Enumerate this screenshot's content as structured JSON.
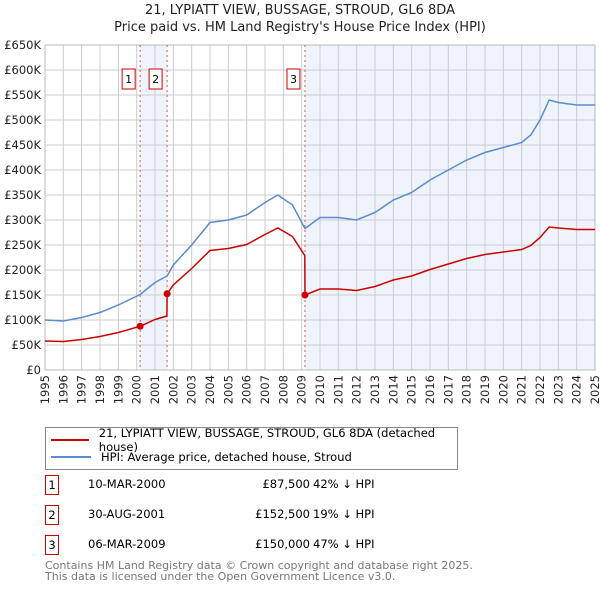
{
  "title_line1": "21, LYPIATT VIEW, BUSSAGE, STROUD, GL6 8DA",
  "title_line2": "Price paid vs. HM Land Registry's House Price Index (HPI)",
  "chart_data": {
    "type": "line",
    "title": "21, LYPIATT VIEW, BUSSAGE, STROUD, GL6 8DA — Price paid vs. HM Land Registry's House Price Index (HPI)",
    "xlim": [
      1995,
      2025
    ],
    "ylim": [
      0,
      650000
    ],
    "x_ticks": [
      "1995",
      "1996",
      "1997",
      "1998",
      "1999",
      "2000",
      "2001",
      "2002",
      "2003",
      "2004",
      "2005",
      "2006",
      "2007",
      "2008",
      "2009",
      "2010",
      "2011",
      "2012",
      "2013",
      "2014",
      "2015",
      "2016",
      "2017",
      "2018",
      "2019",
      "2020",
      "2021",
      "2022",
      "2023",
      "2024",
      "2025"
    ],
    "y_ticks": [
      {
        "v": 0,
        "label": "£0"
      },
      {
        "v": 50000,
        "label": "£50K"
      },
      {
        "v": 100000,
        "label": "£100K"
      },
      {
        "v": 150000,
        "label": "£150K"
      },
      {
        "v": 200000,
        "label": "£200K"
      },
      {
        "v": 250000,
        "label": "£250K"
      },
      {
        "v": 300000,
        "label": "£300K"
      },
      {
        "v": 350000,
        "label": "£350K"
      },
      {
        "v": 400000,
        "label": "£400K"
      },
      {
        "v": 450000,
        "label": "£450K"
      },
      {
        "v": 500000,
        "label": "£500K"
      },
      {
        "v": 550000,
        "label": "£550K"
      },
      {
        "v": 600000,
        "label": "£600K"
      },
      {
        "v": 650000,
        "label": "£650K"
      }
    ],
    "grid": true,
    "series": [
      {
        "name": "21, LYPIATT VIEW, BUSSAGE, STROUD, GL6 8DA (detached house)",
        "color": "#cc0000",
        "x": [
          1995,
          1996,
          1997,
          1998,
          1999,
          2000.19,
          2001,
          2001.65,
          2001.66,
          2002,
          2003,
          2004,
          2005,
          2006,
          2007,
          2007.7,
          2008.5,
          2009.17,
          2009.18,
          2010,
          2011,
          2012,
          2013,
          2014,
          2015,
          2016,
          2017,
          2018,
          2019,
          2020,
          2021,
          2021.5,
          2022,
          2022.5,
          2023,
          2024,
          2025
        ],
        "y": [
          58000,
          57000,
          61000,
          67000,
          75000,
          87500,
          101000,
          108000,
          152500,
          170000,
          203000,
          239000,
          243000,
          251000,
          271000,
          284000,
          267000,
          229000,
          150000,
          162000,
          162000,
          159000,
          167000,
          180000,
          188000,
          201000,
          212000,
          223000,
          231000,
          236000,
          241000,
          249000,
          265000,
          286000,
          284000,
          281000,
          281000
        ]
      },
      {
        "name": "HPI: Average price, detached house, Stroud",
        "color": "#5b8bd0",
        "x": [
          1995,
          1996,
          1997,
          1998,
          1999,
          2000.19,
          2001,
          2001.66,
          2002,
          2003,
          2004,
          2005,
          2006,
          2007,
          2007.7,
          2008.5,
          2009.18,
          2010,
          2011,
          2012,
          2013,
          2014,
          2015,
          2016,
          2017,
          2018,
          2019,
          2020,
          2021,
          2021.5,
          2022,
          2022.5,
          2023,
          2024,
          2025
        ],
        "y": [
          100000,
          98000,
          105000,
          115000,
          130000,
          151000,
          175000,
          188000,
          210000,
          250000,
          295000,
          300000,
          310000,
          335000,
          350000,
          330000,
          283000,
          305000,
          305000,
          300000,
          315000,
          340000,
          355000,
          380000,
          400000,
          420000,
          435000,
          445000,
          455000,
          470000,
          500000,
          540000,
          535000,
          530000,
          530000
        ]
      }
    ],
    "sales": [
      {
        "num": "1",
        "x": 2000.19,
        "date": "10-MAR-2000",
        "price_value": 87500,
        "price": "£87,500",
        "hpi": "42% ↓ HPI"
      },
      {
        "num": "2",
        "x": 2001.66,
        "date": "30-AUG-2001",
        "price_value": 152500,
        "price": "£152,500",
        "hpi": "19% ↓ HPI"
      },
      {
        "num": "3",
        "x": 2009.18,
        "date": "06-MAR-2009",
        "price_value": 150000,
        "price": "£150,000",
        "hpi": "47% ↓ HPI"
      }
    ],
    "legend_placement": "below"
  },
  "legend": {
    "red": "21, LYPIATT VIEW, BUSSAGE, STROUD, GL6 8DA (detached house)",
    "blue": "HPI: Average price, detached house, Stroud"
  },
  "footer": {
    "line1": "Contains HM Land Registry data © Crown copyright and database right 2025.",
    "line2": "This data is licensed under the Open Government Licence v3.0."
  }
}
